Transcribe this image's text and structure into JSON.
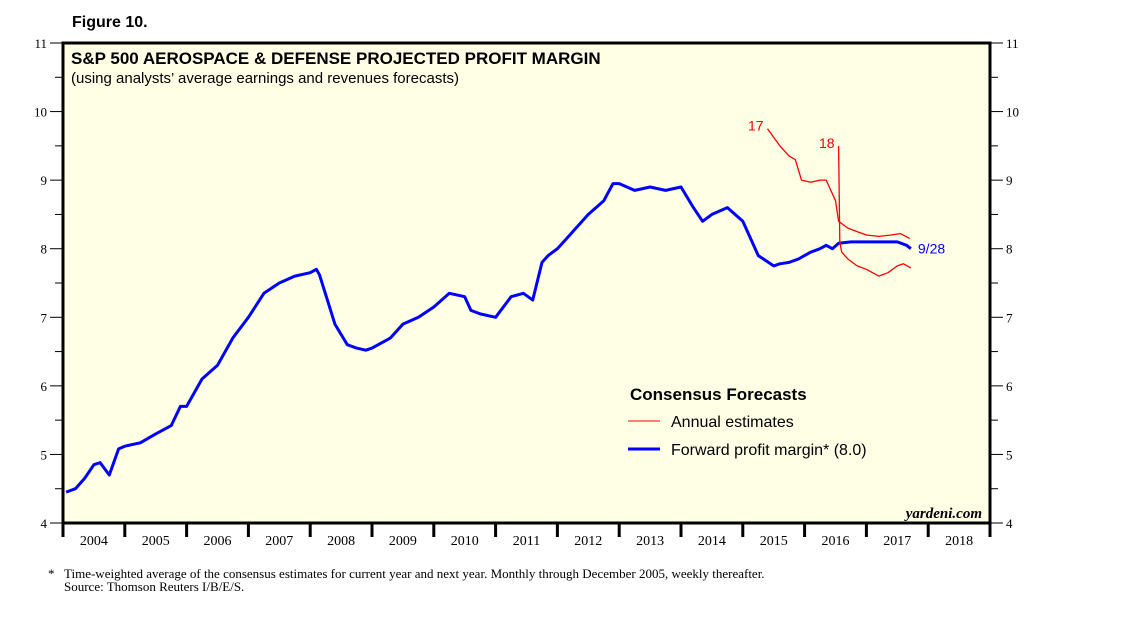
{
  "figure_label": "Figure 10.",
  "footnote": {
    "marker": "*",
    "line1": "Time-weighted average of the consensus estimates for current year and next year. Monthly through December 2005, weekly thereafter.",
    "line2": "Source: Thomson Reuters I/B/E/S."
  },
  "chart_data": {
    "type": "line",
    "title": "S&P 500 AEROSPACE & DEFENSE PROJECTED PROFIT MARGIN",
    "subtitle": "(using analysts’ average earnings and revenues forecasts)",
    "xlabel": "",
    "ylabel": "",
    "xlim": [
      2004,
      2019
    ],
    "ylim": [
      4,
      11
    ],
    "y_ticks": [
      4,
      5,
      6,
      7,
      8,
      9,
      10,
      11
    ],
    "x_tick_labels": [
      "2004",
      "2005",
      "2006",
      "2007",
      "2008",
      "2009",
      "2010",
      "2011",
      "2012",
      "2013",
      "2014",
      "2015",
      "2016",
      "2017",
      "2018"
    ],
    "grid": false,
    "background": "#ffffe6",
    "legend": {
      "title": "Consensus Forecasts",
      "position": "center-right",
      "entries": [
        {
          "label": "Annual estimates",
          "color": "#ff0000"
        },
        {
          "label": "Forward profit margin* (8.0)",
          "color": "#0000ff"
        }
      ]
    },
    "watermark": "yardeni.com",
    "series": [
      {
        "name": "Forward profit margin",
        "color": "#0000ff",
        "end_label": "9/28",
        "x": [
          2004.05,
          2004.2,
          2004.35,
          2004.5,
          2004.6,
          2004.75,
          2004.9,
          2005.0,
          2005.25,
          2005.5,
          2005.75,
          2005.9,
          2006.0,
          2006.25,
          2006.5,
          2006.75,
          2007.0,
          2007.25,
          2007.5,
          2007.75,
          2008.0,
          2008.1,
          2008.15,
          2008.4,
          2008.6,
          2008.75,
          2008.9,
          2009.0,
          2009.1,
          2009.3,
          2009.5,
          2009.75,
          2010.0,
          2010.25,
          2010.5,
          2010.6,
          2010.75,
          2011.0,
          2011.25,
          2011.45,
          2011.6,
          2011.75,
          2011.85,
          2012.0,
          2012.2,
          2012.5,
          2012.75,
          2012.9,
          2013.0,
          2013.25,
          2013.5,
          2013.75,
          2014.0,
          2014.2,
          2014.35,
          2014.5,
          2014.75,
          2015.0,
          2015.25,
          2015.5,
          2015.6,
          2015.75,
          2015.9,
          2016.1,
          2016.25,
          2016.35,
          2016.45,
          2016.55,
          2016.75,
          2017.0,
          2017.25,
          2017.5,
          2017.65,
          2017.72
        ],
        "values": [
          4.45,
          4.5,
          4.65,
          4.85,
          4.88,
          4.7,
          5.08,
          5.12,
          5.17,
          5.3,
          5.42,
          5.7,
          5.7,
          6.1,
          6.3,
          6.7,
          7.0,
          7.35,
          7.5,
          7.6,
          7.65,
          7.7,
          7.62,
          6.9,
          6.6,
          6.55,
          6.52,
          6.55,
          6.6,
          6.7,
          6.9,
          7.0,
          7.15,
          7.35,
          7.3,
          7.1,
          7.05,
          7.0,
          7.3,
          7.35,
          7.25,
          7.8,
          7.9,
          8.0,
          8.2,
          8.5,
          8.7,
          8.95,
          8.95,
          8.85,
          8.9,
          8.85,
          8.9,
          8.6,
          8.4,
          8.5,
          8.6,
          8.4,
          7.9,
          7.75,
          7.78,
          7.8,
          7.85,
          7.95,
          8.0,
          8.05,
          8.0,
          8.08,
          8.1,
          8.1,
          8.1,
          8.1,
          8.05,
          8.0
        ]
      },
      {
        "name": "Annual estimates 2017",
        "color": "#ff0000",
        "label": "17",
        "x": [
          2015.4,
          2015.6,
          2015.75,
          2015.85,
          2015.95,
          2016.1,
          2016.25,
          2016.35,
          2016.45,
          2016.5,
          2016.55,
          2016.7,
          2016.85,
          2017.0,
          2017.2,
          2017.4,
          2017.55,
          2017.7
        ],
        "values": [
          9.75,
          9.5,
          9.35,
          9.3,
          9.0,
          8.97,
          9.0,
          9.0,
          8.8,
          8.7,
          8.4,
          8.3,
          8.25,
          8.2,
          8.18,
          8.2,
          8.22,
          8.15
        ]
      },
      {
        "name": "Annual estimates 2018",
        "color": "#ff0000",
        "label": "18",
        "x": [
          2016.55,
          2016.57,
          2016.6,
          2016.7,
          2016.85,
          2017.0,
          2017.2,
          2017.35,
          2017.5,
          2017.6,
          2017.72
        ],
        "values": [
          9.5,
          8.1,
          7.95,
          7.85,
          7.75,
          7.7,
          7.6,
          7.65,
          7.75,
          7.78,
          7.72
        ]
      }
    ]
  }
}
